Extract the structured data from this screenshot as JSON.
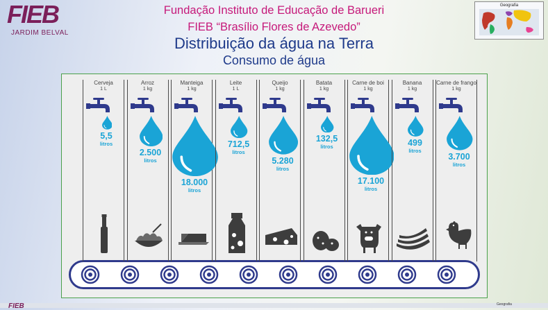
{
  "logo": {
    "mark": "FIEB",
    "caption": "JARDIM BELVAL",
    "color": "#7b1f5a"
  },
  "header": {
    "line1": "Fundação Instituto de Educação de Barueri",
    "line2": "FIEB “Brasílio Flores de Azevedo”",
    "title": "Distribuição da água na Terra",
    "subtitle": "Consumo de água"
  },
  "map_thumb": {
    "label": "Geografia"
  },
  "colors": {
    "water": "#1aa4d6",
    "conveyor": "#2f3a8c",
    "food": "#3d3d3d",
    "header_pink": "#c6197a",
    "title_blue": "#1e3a8a"
  },
  "products": [
    {
      "name": "Cerveja",
      "unit": "1 L",
      "amount": "5,5",
      "liters_label": "litros",
      "icon": "bottle-icon",
      "liters": 5.5
    },
    {
      "name": "Arroz",
      "unit": "1 kg",
      "amount": "2.500",
      "liters_label": "litros",
      "icon": "rice-bowl-icon",
      "liters": 2500
    },
    {
      "name": "Manteiga",
      "unit": "1 kg",
      "amount": "18.000",
      "liters_label": "litros",
      "icon": "butter-icon",
      "liters": 18000
    },
    {
      "name": "Leite",
      "unit": "1 L",
      "amount": "712,5",
      "liters_label": "litros",
      "icon": "milk-carton-icon",
      "liters": 712.5
    },
    {
      "name": "Queijo",
      "unit": "1 kg",
      "amount": "5.280",
      "liters_label": "litros",
      "icon": "cheese-icon",
      "liters": 5280
    },
    {
      "name": "Batata",
      "unit": "1 kg",
      "amount": "132,5",
      "liters_label": "litros",
      "icon": "potato-icon",
      "liters": 132.5
    },
    {
      "name": "Carne de boi",
      "unit": "1 kg",
      "amount": "17.100",
      "liters_label": "litros",
      "icon": "cow-icon",
      "liters": 17100
    },
    {
      "name": "Banana",
      "unit": "1 kg",
      "amount": "499",
      "liters_label": "litros",
      "icon": "banana-icon",
      "liters": 499
    },
    {
      "name": "Carne de frango",
      "unit": "1 kg",
      "amount": "3.700",
      "liters_label": "litros",
      "icon": "chicken-icon",
      "liters": 3700
    }
  ],
  "bottom": {
    "logo": "FIEB",
    "map_label": "Geografia"
  }
}
